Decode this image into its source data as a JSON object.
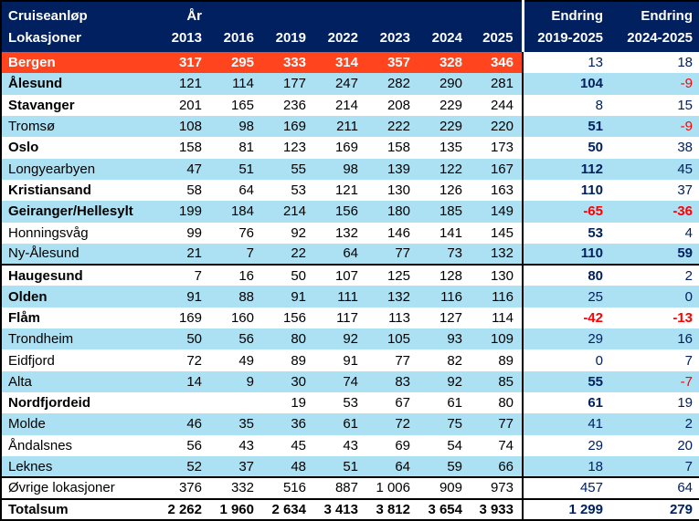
{
  "colors": {
    "header_bg": "#002060",
    "highlight_bg": "#FF441E",
    "stripe_bg": "#ACE1F3",
    "navy_text": "#002060",
    "negative_text": "#FF0000"
  },
  "chart_data": {
    "type": "table",
    "title_line1": "Cruiseanløp",
    "title_line2": "Lokasjoner",
    "year_label": "År",
    "years": [
      "2013",
      "2016",
      "2019",
      "2022",
      "2023",
      "2024",
      "2025"
    ],
    "endring_label": "Endring",
    "endring_periods": [
      "2019-2025",
      "2024-2025"
    ],
    "rows": [
      {
        "name": "Bergen",
        "name_bold": true,
        "highlight": true,
        "bg": "white",
        "values": [
          "317",
          "295",
          "333",
          "314",
          "357",
          "328",
          "346"
        ],
        "endring": [
          {
            "v": "13",
            "bold": false
          },
          {
            "v": "18",
            "bold": false
          }
        ]
      },
      {
        "name": "Ålesund",
        "name_bold": true,
        "bg": "blue",
        "values": [
          "121",
          "114",
          "177",
          "247",
          "282",
          "290",
          "281"
        ],
        "endring": [
          {
            "v": "104",
            "bold": true
          },
          {
            "v": "-9",
            "bold": false
          }
        ]
      },
      {
        "name": "Stavanger",
        "name_bold": true,
        "bg": "white",
        "values": [
          "201",
          "165",
          "236",
          "214",
          "208",
          "229",
          "244"
        ],
        "endring": [
          {
            "v": "8",
            "bold": false
          },
          {
            "v": "15",
            "bold": false
          }
        ]
      },
      {
        "name": "Tromsø",
        "name_bold": false,
        "bg": "blue",
        "values": [
          "108",
          "98",
          "169",
          "211",
          "222",
          "229",
          "220"
        ],
        "endring": [
          {
            "v": "51",
            "bold": true
          },
          {
            "v": "-9",
            "bold": false
          }
        ]
      },
      {
        "name": "Oslo",
        "name_bold": true,
        "bg": "white",
        "values": [
          "158",
          "81",
          "123",
          "169",
          "158",
          "135",
          "173"
        ],
        "endring": [
          {
            "v": "50",
            "bold": true
          },
          {
            "v": "38",
            "bold": false
          }
        ]
      },
      {
        "name": "Longyearbyen",
        "name_bold": false,
        "bg": "blue",
        "values": [
          "47",
          "51",
          "55",
          "98",
          "139",
          "122",
          "167"
        ],
        "endring": [
          {
            "v": "112",
            "bold": true
          },
          {
            "v": "45",
            "bold": false
          }
        ]
      },
      {
        "name": "Kristiansand",
        "name_bold": true,
        "bg": "white",
        "values": [
          "58",
          "64",
          "53",
          "121",
          "130",
          "126",
          "163"
        ],
        "endring": [
          {
            "v": "110",
            "bold": true
          },
          {
            "v": "37",
            "bold": false
          }
        ]
      },
      {
        "name": "Geiranger/Hellesylt",
        "name_bold": true,
        "bg": "blue",
        "values": [
          "199",
          "184",
          "214",
          "156",
          "180",
          "185",
          "149"
        ],
        "endring": [
          {
            "v": "-65",
            "bold": true
          },
          {
            "v": "-36",
            "bold": true
          }
        ]
      },
      {
        "name": "Honningsvåg",
        "name_bold": false,
        "bg": "white",
        "values": [
          "99",
          "76",
          "92",
          "132",
          "146",
          "141",
          "145"
        ],
        "endring": [
          {
            "v": "53",
            "bold": true
          },
          {
            "v": "4",
            "bold": false
          }
        ]
      },
      {
        "name": "Ny-Ålesund",
        "name_bold": false,
        "bg": "blue",
        "group_end": true,
        "values": [
          "21",
          "7",
          "22",
          "64",
          "77",
          "73",
          "132"
        ],
        "endring": [
          {
            "v": "110",
            "bold": true
          },
          {
            "v": "59",
            "bold": true
          }
        ]
      },
      {
        "name": "Haugesund",
        "name_bold": true,
        "bg": "white",
        "values": [
          "7",
          "16",
          "50",
          "107",
          "125",
          "128",
          "130"
        ],
        "endring": [
          {
            "v": "80",
            "bold": true
          },
          {
            "v": "2",
            "bold": false
          }
        ]
      },
      {
        "name": "Olden",
        "name_bold": true,
        "bg": "blue",
        "values": [
          "91",
          "88",
          "91",
          "111",
          "132",
          "116",
          "116"
        ],
        "endring": [
          {
            "v": "25",
            "bold": false
          },
          {
            "v": "0",
            "bold": false
          }
        ]
      },
      {
        "name": "Flåm",
        "name_bold": true,
        "bg": "white",
        "values": [
          "169",
          "160",
          "156",
          "117",
          "113",
          "127",
          "114"
        ],
        "endring": [
          {
            "v": "-42",
            "bold": true
          },
          {
            "v": "-13",
            "bold": true
          }
        ]
      },
      {
        "name": "Trondheim",
        "name_bold": false,
        "bg": "blue",
        "values": [
          "50",
          "56",
          "80",
          "92",
          "105",
          "93",
          "109"
        ],
        "endring": [
          {
            "v": "29",
            "bold": false
          },
          {
            "v": "16",
            "bold": false
          }
        ]
      },
      {
        "name": "Eidfjord",
        "name_bold": false,
        "bg": "white",
        "values": [
          "72",
          "49",
          "89",
          "91",
          "77",
          "82",
          "89"
        ],
        "endring": [
          {
            "v": "0",
            "bold": false
          },
          {
            "v": "7",
            "bold": false
          }
        ]
      },
      {
        "name": "Alta",
        "name_bold": false,
        "bg": "blue",
        "values": [
          "14",
          "9",
          "30",
          "74",
          "83",
          "92",
          "85"
        ],
        "endring": [
          {
            "v": "55",
            "bold": true
          },
          {
            "v": "-7",
            "bold": false
          }
        ]
      },
      {
        "name": "Nordfjordeid",
        "name_bold": true,
        "bg": "white",
        "values": [
          "",
          "",
          "19",
          "53",
          "67",
          "61",
          "80"
        ],
        "endring": [
          {
            "v": "61",
            "bold": true
          },
          {
            "v": "19",
            "bold": false
          }
        ]
      },
      {
        "name": "Molde",
        "name_bold": false,
        "bg": "blue",
        "values": [
          "46",
          "35",
          "36",
          "61",
          "72",
          "75",
          "77"
        ],
        "endring": [
          {
            "v": "41",
            "bold": false
          },
          {
            "v": "2",
            "bold": false
          }
        ]
      },
      {
        "name": "Åndalsnes",
        "name_bold": false,
        "bg": "white",
        "values": [
          "56",
          "43",
          "45",
          "43",
          "69",
          "54",
          "74"
        ],
        "endring": [
          {
            "v": "29",
            "bold": false
          },
          {
            "v": "20",
            "bold": false
          }
        ]
      },
      {
        "name": "Leknes",
        "name_bold": false,
        "bg": "blue",
        "group_end": true,
        "values": [
          "52",
          "37",
          "48",
          "51",
          "64",
          "59",
          "66"
        ],
        "endring": [
          {
            "v": "18",
            "bold": false
          },
          {
            "v": "7",
            "bold": false
          }
        ]
      },
      {
        "name": "Øvrige lokasjoner",
        "name_bold": false,
        "bg": "white",
        "group_end": true,
        "values": [
          "376",
          "332",
          "516",
          "887",
          "1 006",
          "909",
          "973"
        ],
        "endring": [
          {
            "v": "457",
            "bold": false
          },
          {
            "v": "64",
            "bold": false
          }
        ]
      },
      {
        "name": "Totalsum",
        "name_bold": true,
        "bg": "white",
        "total": true,
        "values": [
          "2 262",
          "1 960",
          "2 634",
          "3 413",
          "3 812",
          "3 654",
          "3 933"
        ],
        "endring": [
          {
            "v": "1 299",
            "bold": true
          },
          {
            "v": "279",
            "bold": true
          }
        ]
      }
    ]
  }
}
